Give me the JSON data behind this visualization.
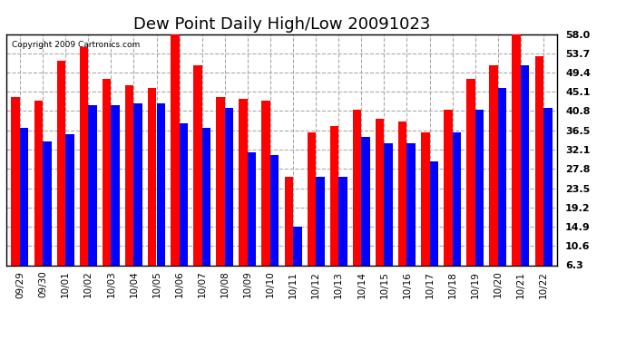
{
  "title": "Dew Point Daily High/Low 20091023",
  "copyright": "Copyright 2009 Cartronics.com",
  "dates": [
    "09/29",
    "09/30",
    "10/01",
    "10/02",
    "10/03",
    "10/04",
    "10/05",
    "10/06",
    "10/07",
    "10/08",
    "10/09",
    "10/10",
    "10/11",
    "10/12",
    "10/13",
    "10/14",
    "10/15",
    "10/16",
    "10/17",
    "10/18",
    "10/19",
    "10/20",
    "10/21",
    "10/22"
  ],
  "highs": [
    44.0,
    43.0,
    52.0,
    55.0,
    48.0,
    46.5,
    46.0,
    58.0,
    51.0,
    44.0,
    43.5,
    43.0,
    26.0,
    36.0,
    37.5,
    41.0,
    39.0,
    38.5,
    36.0,
    41.0,
    48.0,
    51.0,
    58.0,
    53.0
  ],
  "lows": [
    37.0,
    34.0,
    35.5,
    42.0,
    42.0,
    42.5,
    42.5,
    38.0,
    37.0,
    41.5,
    31.5,
    31.0,
    15.0,
    26.0,
    26.0,
    35.0,
    33.5,
    33.5,
    29.5,
    36.0,
    41.0,
    46.0,
    51.0,
    41.5
  ],
  "high_color": "#ff0000",
  "low_color": "#0000ff",
  "bg_color": "#ffffff",
  "grid_color": "#aaaaaa",
  "yticks": [
    6.3,
    10.6,
    14.9,
    19.2,
    23.5,
    27.8,
    32.1,
    36.5,
    40.8,
    45.1,
    49.4,
    53.7,
    58.0
  ],
  "ymin": 6.3,
  "ymax": 58.0,
  "bar_width": 0.38,
  "title_fontsize": 13
}
